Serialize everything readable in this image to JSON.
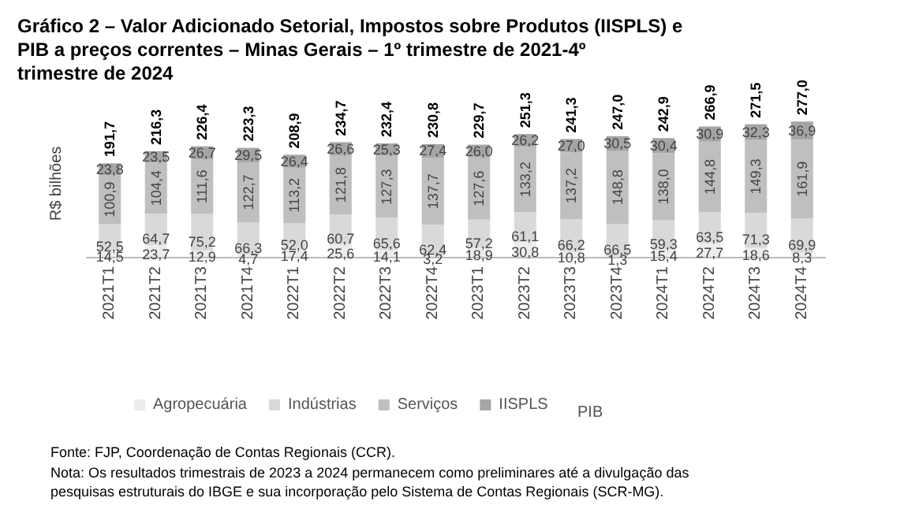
{
  "chart_data": {
    "type": "bar",
    "stacked": true,
    "title": "Gráfico 2 – Valor Adicionado Setorial, Impostos sobre Produtos (IISPLS) e PIB a preços correntes – Minas Gerais – 1º trimestre de 2021-4º trimestre de 2024",
    "ylabel": "R$ bilhões",
    "categories": [
      "2021T1",
      "2021T2",
      "2021T3",
      "2021T4",
      "2022T1",
      "2022T2",
      "2022T3",
      "2022T4",
      "2023T1",
      "2023T2",
      "2023T3",
      "2023T4",
      "2024T1",
      "2024T2",
      "2024T3",
      "2024T4"
    ],
    "series": [
      {
        "name": "Agropecuária",
        "color": "#ececec",
        "values": [
          14.5,
          23.7,
          12.9,
          4.7,
          17.4,
          25.6,
          14.1,
          3.2,
          18.9,
          30.8,
          10.8,
          1.3,
          15.4,
          27.7,
          18.6,
          8.3
        ],
        "value_labels": [
          "14,5",
          "23,7",
          "12,9",
          "4,7",
          "17,4",
          "25,6",
          "14,1",
          "3,2",
          "18,9",
          "30,8",
          "10,8",
          "1,3",
          "15,4",
          "27,7",
          "18,6",
          "8,3"
        ]
      },
      {
        "name": "Indústrias",
        "color": "#d9d9d9",
        "values": [
          52.5,
          64.7,
          75.2,
          66.3,
          52.0,
          60.7,
          65.6,
          62.4,
          57.2,
          61.1,
          66.2,
          66.5,
          59.3,
          63.5,
          71.3,
          69.9
        ],
        "value_labels": [
          "52,5",
          "64,7",
          "75,2",
          "66,3",
          "52,0",
          "60,7",
          "65,6",
          "62,4",
          "57,2",
          "61,1",
          "66,2",
          "66,5",
          "59,3",
          "63,5",
          "71,3",
          "69,9"
        ]
      },
      {
        "name": "Serviços",
        "color": "#bfbfbf",
        "values": [
          100.9,
          104.4,
          111.6,
          122.7,
          113.2,
          121.8,
          127.3,
          137.7,
          127.6,
          133.2,
          137.2,
          148.8,
          138.0,
          144.8,
          149.3,
          161.9
        ],
        "value_labels": [
          "100,9",
          "104,4",
          "111,6",
          "122,7",
          "113,2",
          "121,8",
          "127,3",
          "137,7",
          "127,6",
          "133,2",
          "137,2",
          "148,8",
          "138,0",
          "144,8",
          "149,3",
          "161,9"
        ]
      },
      {
        "name": "IISPLS",
        "color": "#a5a5a5",
        "values": [
          23.8,
          23.5,
          26.7,
          29.5,
          26.4,
          26.6,
          25.3,
          27.4,
          26.0,
          26.2,
          27.0,
          30.5,
          30.4,
          30.9,
          32.3,
          36.9
        ],
        "value_labels": [
          "23,8",
          "23,5",
          "26,7",
          "29,5",
          "26,4",
          "26,6",
          "25,3",
          "27,4",
          "26,0",
          "26,2",
          "27,0",
          "30,5",
          "30,4",
          "30,9",
          "32,3",
          "36,9"
        ]
      }
    ],
    "totals": [
      "191,7",
      "216,3",
      "226,4",
      "223,3",
      "208,9",
      "234,7",
      "232,4",
      "230,8",
      "229,7",
      "251,3",
      "241,3",
      "247,0",
      "242,9",
      "266,9",
      "271,5",
      "277,0"
    ],
    "tick_labels": "x",
    "grid": false,
    "legend": "bottom",
    "annotations": [
      "PIB",
      "Fonte: FJP, Coordenação de Contas Regionais (CCR).",
      "Nota: Os resultados trimestrais de 2023 a 2024 permanecem como preliminares até a divulgação das pesquisas estruturais do IBGE e sua incorporação pelo Sistema de Contas Regionais (SCR-MG)."
    ]
  }
}
